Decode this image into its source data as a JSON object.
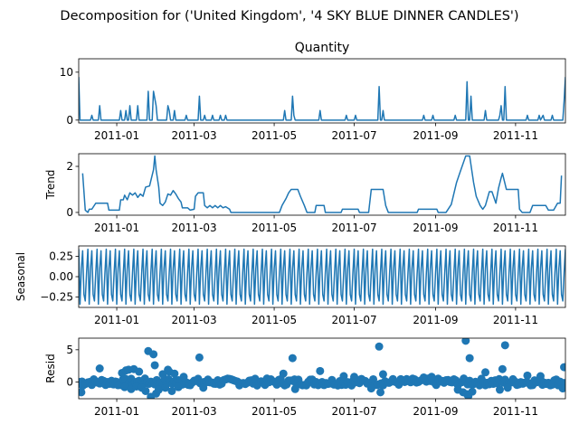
{
  "figure": {
    "suptitle": "Decomposition for ('United Kingdom', '4 SKY BLUE DINNER CANDLES')",
    "line_color": "#1f77b4"
  },
  "chart_data": [
    {
      "type": "line",
      "title": "Quantity",
      "ylabel": "",
      "ylim": [
        -0.6,
        12.8
      ],
      "yticks": [
        0,
        10
      ],
      "xticks": [
        "2011-01",
        "2011-03",
        "2011-05",
        "2011-07",
        "2011-09",
        "2011-11"
      ],
      "x_range": [
        "2010-12-03",
        "2011-12-09"
      ],
      "points": [
        [
          "2010-12-03",
          9
        ],
        [
          "2010-12-04",
          0
        ],
        [
          "2010-12-12",
          0
        ],
        [
          "2010-12-13",
          1
        ],
        [
          "2010-12-14",
          0
        ],
        [
          "2010-12-18",
          0
        ],
        [
          "2010-12-19",
          3
        ],
        [
          "2010-12-20",
          0
        ],
        [
          "2011-01-03",
          0
        ],
        [
          "2011-01-04",
          2
        ],
        [
          "2011-01-05",
          0
        ],
        [
          "2011-01-07",
          0
        ],
        [
          "2011-01-08",
          2
        ],
        [
          "2011-01-09",
          0
        ],
        [
          "2011-01-10",
          0
        ],
        [
          "2011-01-11",
          3
        ],
        [
          "2011-01-12",
          0
        ],
        [
          "2011-01-16",
          0
        ],
        [
          "2011-01-17",
          3
        ],
        [
          "2011-01-18",
          0
        ],
        [
          "2011-01-24",
          0
        ],
        [
          "2011-01-25",
          6
        ],
        [
          "2011-01-26",
          0
        ],
        [
          "2011-01-28",
          0
        ],
        [
          "2011-01-29",
          6
        ],
        [
          "2011-01-31",
          3
        ],
        [
          "2011-02-01",
          0
        ],
        [
          "2011-02-08",
          0
        ],
        [
          "2011-02-09",
          3
        ],
        [
          "2011-02-10",
          2
        ],
        [
          "2011-02-11",
          0
        ],
        [
          "2011-02-13",
          0
        ],
        [
          "2011-02-14",
          2
        ],
        [
          "2011-02-15",
          0
        ],
        [
          "2011-02-22",
          0
        ],
        [
          "2011-02-23",
          1
        ],
        [
          "2011-02-24",
          0
        ],
        [
          "2011-03-04",
          0
        ],
        [
          "2011-03-05",
          5
        ],
        [
          "2011-03-06",
          0
        ],
        [
          "2011-03-08",
          0
        ],
        [
          "2011-03-09",
          1
        ],
        [
          "2011-03-10",
          0
        ],
        [
          "2011-03-14",
          0
        ],
        [
          "2011-03-15",
          1
        ],
        [
          "2011-03-16",
          0
        ],
        [
          "2011-03-20",
          0
        ],
        [
          "2011-03-21",
          1
        ],
        [
          "2011-03-22",
          0
        ],
        [
          "2011-03-24",
          0
        ],
        [
          "2011-03-25",
          1
        ],
        [
          "2011-03-26",
          0
        ],
        [
          "2011-05-08",
          0
        ],
        [
          "2011-05-09",
          2
        ],
        [
          "2011-05-10",
          0
        ],
        [
          "2011-05-14",
          0
        ],
        [
          "2011-05-15",
          5
        ],
        [
          "2011-05-16",
          1
        ],
        [
          "2011-05-17",
          0
        ],
        [
          "2011-06-04",
          0
        ],
        [
          "2011-06-05",
          2
        ],
        [
          "2011-06-06",
          0
        ],
        [
          "2011-06-24",
          0
        ],
        [
          "2011-06-25",
          1
        ],
        [
          "2011-06-26",
          0
        ],
        [
          "2011-07-01",
          0
        ],
        [
          "2011-07-02",
          1
        ],
        [
          "2011-07-03",
          0
        ],
        [
          "2011-07-19",
          0
        ],
        [
          "2011-07-20",
          7
        ],
        [
          "2011-07-21",
          0
        ],
        [
          "2011-07-22",
          0
        ],
        [
          "2011-07-23",
          2
        ],
        [
          "2011-07-24",
          0
        ],
        [
          "2011-08-22",
          0
        ],
        [
          "2011-08-23",
          1
        ],
        [
          "2011-08-24",
          0
        ],
        [
          "2011-08-29",
          0
        ],
        [
          "2011-08-30",
          1
        ],
        [
          "2011-08-31",
          0
        ],
        [
          "2011-09-15",
          0
        ],
        [
          "2011-09-16",
          1
        ],
        [
          "2011-09-17",
          0
        ],
        [
          "2011-09-24",
          0
        ],
        [
          "2011-09-25",
          8
        ],
        [
          "2011-09-26",
          0
        ],
        [
          "2011-09-27",
          0
        ],
        [
          "2011-09-28",
          5
        ],
        [
          "2011-09-29",
          0
        ],
        [
          "2011-10-08",
          0
        ],
        [
          "2011-10-09",
          2
        ],
        [
          "2011-10-10",
          0
        ],
        [
          "2011-10-19",
          0
        ],
        [
          "2011-10-20",
          1
        ],
        [
          "2011-10-21",
          3
        ],
        [
          "2011-10-22",
          0
        ],
        [
          "2011-10-23",
          0
        ],
        [
          "2011-10-24",
          7
        ],
        [
          "2011-10-25",
          0
        ],
        [
          "2011-11-09",
          0
        ],
        [
          "2011-11-10",
          1
        ],
        [
          "2011-11-11",
          0
        ],
        [
          "2011-11-18",
          0
        ],
        [
          "2011-11-19",
          1
        ],
        [
          "2011-11-20",
          0
        ],
        [
          "2011-11-22",
          1
        ],
        [
          "2011-11-23",
          0
        ],
        [
          "2011-11-28",
          0
        ],
        [
          "2011-11-29",
          1
        ],
        [
          "2011-11-30",
          0
        ],
        [
          "2011-12-07",
          0
        ],
        [
          "2011-12-08",
          4
        ],
        [
          "2011-12-09",
          9
        ]
      ]
    },
    {
      "type": "line",
      "title": "",
      "ylabel": "Trend",
      "ylim": [
        -0.12,
        2.55
      ],
      "yticks": [
        0,
        2
      ],
      "xticks": [
        "2011-01",
        "2011-03",
        "2011-05",
        "2011-07",
        "2011-09",
        "2011-11"
      ],
      "x_range": [
        "2010-12-03",
        "2011-12-09"
      ],
      "points": [
        [
          "2010-12-06",
          1.7
        ],
        [
          "2010-12-08",
          0.1
        ],
        [
          "2010-12-10",
          0.0
        ],
        [
          "2010-12-11",
          0.14
        ],
        [
          "2010-12-13",
          0.14
        ],
        [
          "2010-12-16",
          0.4
        ],
        [
          "2010-12-25",
          0.4
        ],
        [
          "2010-12-26",
          0.1
        ],
        [
          "2011-01-03",
          0.1
        ],
        [
          "2011-01-04",
          0.55
        ],
        [
          "2011-01-06",
          0.55
        ],
        [
          "2011-01-07",
          0.75
        ],
        [
          "2011-01-09",
          0.55
        ],
        [
          "2011-01-11",
          0.85
        ],
        [
          "2011-01-13",
          0.75
        ],
        [
          "2011-01-15",
          0.85
        ],
        [
          "2011-01-17",
          0.65
        ],
        [
          "2011-01-19",
          0.8
        ],
        [
          "2011-01-21",
          0.7
        ],
        [
          "2011-01-23",
          1.1
        ],
        [
          "2011-01-26",
          1.15
        ],
        [
          "2011-01-29",
          1.85
        ],
        [
          "2011-01-30",
          2.45
        ],
        [
          "2011-01-31",
          1.85
        ],
        [
          "2011-02-02",
          1.1
        ],
        [
          "2011-02-03",
          0.4
        ],
        [
          "2011-02-05",
          0.3
        ],
        [
          "2011-02-07",
          0.45
        ],
        [
          "2011-02-09",
          0.8
        ],
        [
          "2011-02-11",
          0.75
        ],
        [
          "2011-02-13",
          0.95
        ],
        [
          "2011-02-15",
          0.8
        ],
        [
          "2011-02-17",
          0.6
        ],
        [
          "2011-02-19",
          0.45
        ],
        [
          "2011-02-20",
          0.2
        ],
        [
          "2011-02-24",
          0.2
        ],
        [
          "2011-02-26",
          0.1
        ],
        [
          "2011-03-01",
          0.14
        ],
        [
          "2011-03-02",
          0.7
        ],
        [
          "2011-03-04",
          0.85
        ],
        [
          "2011-03-08",
          0.85
        ],
        [
          "2011-03-09",
          0.3
        ],
        [
          "2011-03-11",
          0.2
        ],
        [
          "2011-03-13",
          0.3
        ],
        [
          "2011-03-15",
          0.2
        ],
        [
          "2011-03-17",
          0.3
        ],
        [
          "2011-03-19",
          0.2
        ],
        [
          "2011-03-21",
          0.3
        ],
        [
          "2011-03-23",
          0.2
        ],
        [
          "2011-03-25",
          0.25
        ],
        [
          "2011-03-28",
          0.14
        ],
        [
          "2011-03-29",
          0.0
        ],
        [
          "2011-05-05",
          0.0
        ],
        [
          "2011-05-07",
          0.3
        ],
        [
          "2011-05-10",
          0.6
        ],
        [
          "2011-05-12",
          0.85
        ],
        [
          "2011-05-14",
          1.0
        ],
        [
          "2011-05-19",
          1.0
        ],
        [
          "2011-05-21",
          0.7
        ],
        [
          "2011-05-24",
          0.3
        ],
        [
          "2011-05-26",
          0.0
        ],
        [
          "2011-06-01",
          0.0
        ],
        [
          "2011-06-02",
          0.3
        ],
        [
          "2011-06-08",
          0.3
        ],
        [
          "2011-06-09",
          0.0
        ],
        [
          "2011-06-21",
          0.0
        ],
        [
          "2011-06-22",
          0.14
        ],
        [
          "2011-07-04",
          0.14
        ],
        [
          "2011-07-05",
          0.0
        ],
        [
          "2011-07-12",
          0.0
        ],
        [
          "2011-07-14",
          1.0
        ],
        [
          "2011-07-23",
          1.0
        ],
        [
          "2011-07-25",
          0.3
        ],
        [
          "2011-07-27",
          0.0
        ],
        [
          "2011-08-18",
          0.0
        ],
        [
          "2011-08-19",
          0.14
        ],
        [
          "2011-09-02",
          0.14
        ],
        [
          "2011-09-03",
          0.0
        ],
        [
          "2011-09-09",
          0.0
        ],
        [
          "2011-09-13",
          0.35
        ],
        [
          "2011-09-17",
          1.3
        ],
        [
          "2011-09-20",
          1.8
        ],
        [
          "2011-09-24",
          2.45
        ],
        [
          "2011-09-27",
          2.45
        ],
        [
          "2011-09-30",
          1.3
        ],
        [
          "2011-10-02",
          0.7
        ],
        [
          "2011-10-05",
          0.3
        ],
        [
          "2011-10-07",
          0.14
        ],
        [
          "2011-10-09",
          0.3
        ],
        [
          "2011-10-12",
          0.9
        ],
        [
          "2011-10-14",
          0.9
        ],
        [
          "2011-10-17",
          0.4
        ],
        [
          "2011-10-19",
          1.05
        ],
        [
          "2011-10-21",
          1.5
        ],
        [
          "2011-10-22",
          1.7
        ],
        [
          "2011-10-25",
          1.0
        ],
        [
          "2011-11-03",
          1.0
        ],
        [
          "2011-11-04",
          0.14
        ],
        [
          "2011-11-06",
          0.0
        ],
        [
          "2011-11-12",
          0.0
        ],
        [
          "2011-11-14",
          0.3
        ],
        [
          "2011-11-24",
          0.3
        ],
        [
          "2011-11-26",
          0.1
        ],
        [
          "2011-11-30",
          0.1
        ],
        [
          "2011-12-03",
          0.4
        ],
        [
          "2011-12-05",
          0.4
        ],
        [
          "2011-12-06",
          1.6
        ]
      ]
    },
    {
      "type": "line",
      "title": "",
      "ylabel": "Seasonal",
      "ylim": [
        -0.38,
        0.38
      ],
      "yticks": [
        0.25,
        0.0,
        -0.25
      ],
      "ytick_labels": [
        "0.25",
        "0.00",
        "−0.25"
      ],
      "xticks": [
        "2011-01",
        "2011-03",
        "2011-05",
        "2011-07",
        "2011-09",
        "2011-11"
      ],
      "x_range": [
        "2010-12-03",
        "2011-12-09"
      ],
      "period_days": 7,
      "start_date": "2010-12-03",
      "end_date": "2011-12-09",
      "pattern": [
        0.34,
        -0.34,
        0.1,
        0.32,
        -0.22,
        -0.3,
        0.05
      ]
    },
    {
      "type": "scatter",
      "title": "",
      "ylabel": "Resid",
      "ylim": [
        -2.6,
        6.8
      ],
      "yticks": [
        0,
        5
      ],
      "xticks": [
        "2011-01",
        "2011-03",
        "2011-05",
        "2011-07",
        "2011-09",
        "2011-11"
      ],
      "x_range": [
        "2010-12-03",
        "2011-12-09"
      ],
      "baseline": 0,
      "points": [
        [
          "2010-12-05",
          -1.6
        ],
        [
          "2010-12-06",
          -0.6
        ],
        [
          "2010-12-19",
          2.1
        ],
        [
          "2011-01-02",
          -0.5
        ],
        [
          "2011-01-05",
          1.4
        ],
        [
          "2011-01-07",
          -0.8
        ],
        [
          "2011-01-08",
          1.8
        ],
        [
          "2011-01-10",
          1.9
        ],
        [
          "2011-01-12",
          -1.1
        ],
        [
          "2011-01-14",
          2.0
        ],
        [
          "2011-01-16",
          -0.7
        ],
        [
          "2011-01-18",
          1.6
        ],
        [
          "2011-01-20",
          -0.9
        ],
        [
          "2011-01-23",
          -1.4
        ],
        [
          "2011-01-25",
          4.8
        ],
        [
          "2011-01-27",
          -2.3
        ],
        [
          "2011-01-29",
          4.3
        ],
        [
          "2011-01-30",
          2.6
        ],
        [
          "2011-01-31",
          -1.8
        ],
        [
          "2011-02-02",
          -1.2
        ],
        [
          "2011-02-05",
          1.2
        ],
        [
          "2011-02-07",
          -0.9
        ],
        [
          "2011-02-09",
          1.9
        ],
        [
          "2011-02-10",
          1.6
        ],
        [
          "2011-02-12",
          -1.4
        ],
        [
          "2011-02-14",
          1.3
        ],
        [
          "2011-02-17",
          -0.8
        ],
        [
          "2011-02-21",
          0.8
        ],
        [
          "2011-03-05",
          3.8
        ],
        [
          "2011-03-08",
          -0.9
        ],
        [
          "2011-05-08",
          1.3
        ],
        [
          "2011-05-15",
          3.7
        ],
        [
          "2011-05-17",
          -1.1
        ],
        [
          "2011-06-05",
          1.7
        ],
        [
          "2011-06-23",
          0.9
        ],
        [
          "2011-07-01",
          0.8
        ],
        [
          "2011-07-14",
          -1.0
        ],
        [
          "2011-07-20",
          5.5
        ],
        [
          "2011-07-21",
          -1.6
        ],
        [
          "2011-07-23",
          1.2
        ],
        [
          "2011-08-23",
          0.7
        ],
        [
          "2011-08-29",
          0.8
        ],
        [
          "2011-09-18",
          -1.2
        ],
        [
          "2011-09-22",
          -1.6
        ],
        [
          "2011-09-24",
          6.4
        ],
        [
          "2011-09-25",
          -1.9
        ],
        [
          "2011-09-26",
          -2.2
        ],
        [
          "2011-09-27",
          3.7
        ],
        [
          "2011-09-29",
          -1.5
        ],
        [
          "2011-10-09",
          1.5
        ],
        [
          "2011-10-20",
          -1.2
        ],
        [
          "2011-10-22",
          2.0
        ],
        [
          "2011-10-24",
          5.7
        ],
        [
          "2011-10-26",
          -0.9
        ],
        [
          "2011-11-10",
          1.0
        ],
        [
          "2011-11-20",
          0.9
        ],
        [
          "2011-12-07",
          -1.0
        ],
        [
          "2011-12-08",
          2.3
        ]
      ]
    }
  ]
}
